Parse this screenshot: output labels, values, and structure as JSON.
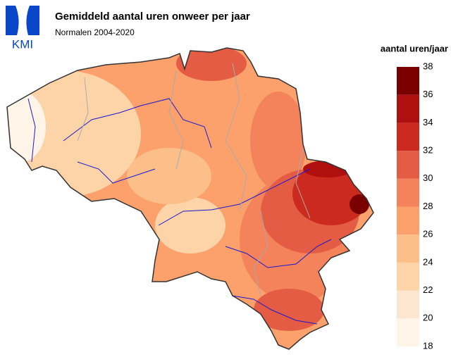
{
  "logo": "KMI",
  "title": "Gemiddeld aantal uren onweer per jaar",
  "subtitle": "Normalen 2004-2020",
  "legend": {
    "title": "aantal uren/jaar",
    "ticks": [
      18,
      20,
      22,
      24,
      26,
      28,
      30,
      32,
      34,
      36,
      38
    ],
    "colors": [
      "#fef4e8",
      "#fde6cf",
      "#fdd3a8",
      "#fcbf8a",
      "#fca16c",
      "#f4825a",
      "#e35c43",
      "#cc2a1e",
      "#b00f0f",
      "#7a0000"
    ]
  }
}
